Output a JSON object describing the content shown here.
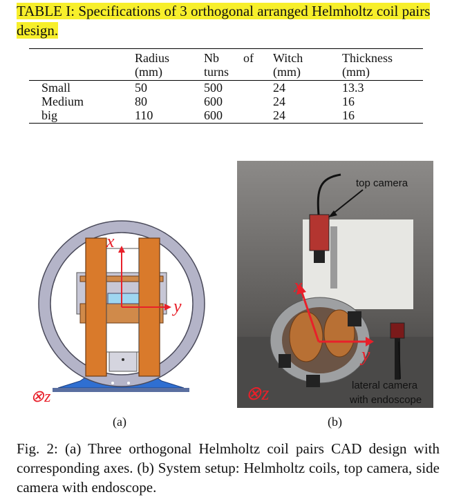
{
  "table": {
    "caption_prefix": "TABLE I:",
    "caption_text": "Specifications of 3 orthogonal arranged Helmholtz coil pairs design.",
    "headers": {
      "radius_line1": "Radius",
      "radius_line2": "(mm)",
      "nb_word1": "Nb",
      "nb_word2": "of",
      "nb_line2": "turns",
      "witch_line1": "Witch",
      "witch_line2": "(mm)",
      "thickness_line1": "Thickness",
      "thickness_line2": "(mm)"
    },
    "rows": [
      {
        "name": "Small",
        "radius": "50",
        "turns": "500",
        "witch": "24",
        "thickness": "13.3"
      },
      {
        "name": "Medium",
        "radius": "80",
        "turns": "600",
        "witch": "24",
        "thickness": "16"
      },
      {
        "name": "big",
        "radius": "110",
        "turns": "600",
        "witch": "24",
        "thickness": "16"
      }
    ]
  },
  "figure": {
    "cad_labels": {
      "x": "x",
      "y": "y",
      "z": "⊗z"
    },
    "photo_labels": {
      "top_camera": "top camera",
      "lateral_camera_1": "lateral camera",
      "lateral_camera_2": "with endoscope",
      "x": "x",
      "y": "y",
      "z": "⊗z"
    },
    "sub_a": "(a)",
    "sub_b": "(b)",
    "caption": "Fig. 2: (a) Three orthogonal Helmholtz coil pairs CAD design with corresponding axes. (b) System setup: Helmholtz coils, top camera, side camera with endoscope."
  },
  "colors": {
    "highlight": "#f7ef2b",
    "axis_red": "#e8202a",
    "cad_gray": "#a6a6bd",
    "cad_orange": "#d97a2b",
    "cad_blue": "#2f6fd1"
  }
}
